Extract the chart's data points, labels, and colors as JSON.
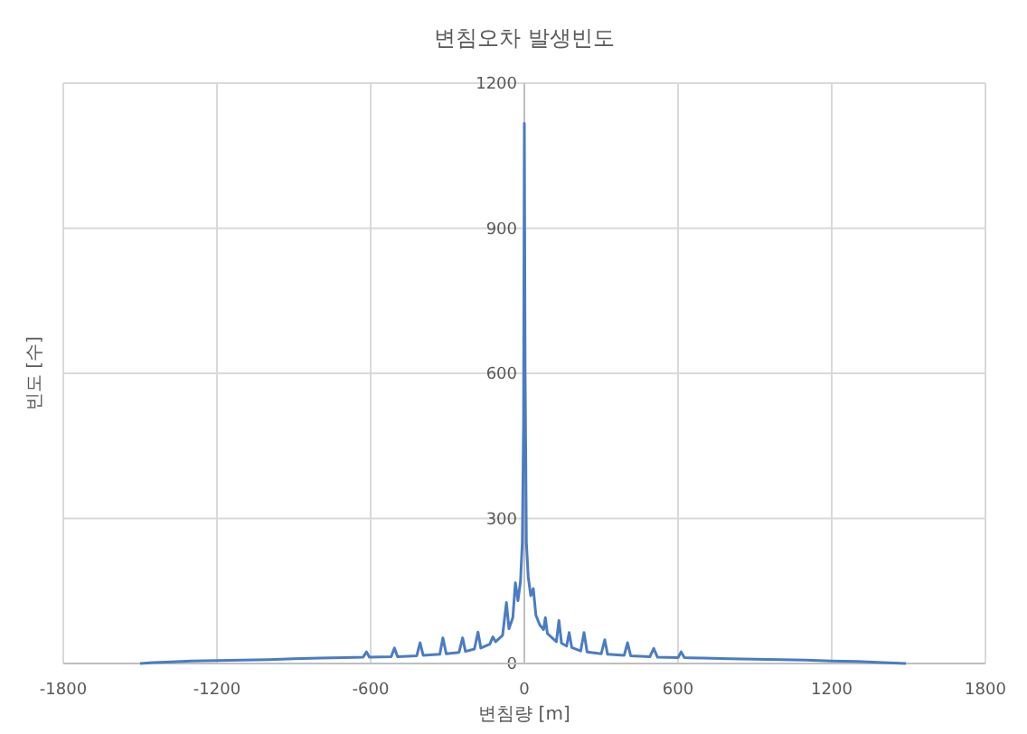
{
  "chart_data": {
    "type": "line",
    "title": "변침오차 발생빈도",
    "xlabel": "변침량 [m]",
    "ylabel": "빈도 [수]",
    "color": "#4a7cc4",
    "grid": true,
    "xlim": [
      -1800,
      1800
    ],
    "xticks": [
      -1800,
      -1200,
      -600,
      0,
      600,
      1200,
      1800
    ],
    "ylim": [
      0,
      1200
    ],
    "yticks": [
      0,
      300,
      600,
      900,
      1200
    ],
    "x": [
      -1500,
      -1450,
      -1400,
      -1300,
      -1200,
      -1100,
      -1000,
      -900,
      -800,
      -700,
      -630,
      -616,
      -605,
      -520,
      -507,
      -495,
      -420,
      -407,
      -395,
      -330,
      -318,
      -305,
      -255,
      -241,
      -230,
      -195,
      -181,
      -170,
      -135,
      -123,
      -112,
      -85,
      -70,
      -60,
      -45,
      -35,
      -25,
      -15,
      -8,
      -3,
      0,
      3,
      8,
      15,
      25,
      35,
      45,
      60,
      75,
      82,
      90,
      125,
      135,
      145,
      165,
      175,
      185,
      220,
      233,
      245,
      300,
      314,
      325,
      390,
      403,
      415,
      490,
      505,
      520,
      600,
      612,
      625,
      700,
      800,
      900,
      1000,
      1100,
      1200,
      1300,
      1400,
      1490
    ],
    "values": [
      0,
      2,
      3,
      5,
      6,
      7,
      8,
      10,
      11,
      12,
      13,
      24,
      13,
      14,
      32,
      14,
      16,
      43,
      17,
      19,
      53,
      20,
      23,
      53,
      25,
      30,
      65,
      32,
      40,
      55,
      45,
      58,
      126,
      72,
      95,
      167,
      130,
      170,
      250,
      500,
      1117,
      600,
      250,
      180,
      140,
      155,
      100,
      80,
      70,
      95,
      62,
      45,
      89,
      42,
      36,
      64,
      33,
      26,
      64,
      24,
      20,
      49,
      19,
      17,
      43,
      16,
      14,
      31,
      13,
      12,
      24,
      12,
      11,
      10,
      9,
      8,
      7,
      5,
      4,
      2,
      0
    ]
  }
}
